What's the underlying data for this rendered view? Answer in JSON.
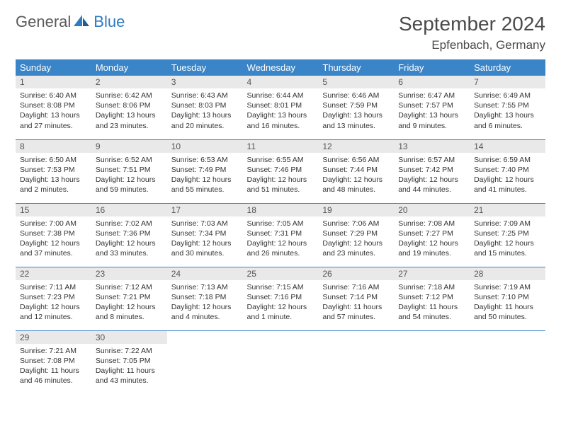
{
  "brand": {
    "general": "General",
    "blue": "Blue"
  },
  "header": {
    "month_title": "September 2024",
    "location": "Epfenbach, Germany"
  },
  "colors": {
    "header_bg": "#3a85c8",
    "header_text": "#ffffff",
    "daynum_bg": "#e9e9e9",
    "row_border": "#3a85c8",
    "brand_blue": "#2f7ac0",
    "brand_gray": "#5a5a5a",
    "page_bg": "#ffffff",
    "body_text": "#333333"
  },
  "day_labels": [
    "Sunday",
    "Monday",
    "Tuesday",
    "Wednesday",
    "Thursday",
    "Friday",
    "Saturday"
  ],
  "days": [
    {
      "n": "1",
      "sr": "Sunrise: 6:40 AM",
      "ss": "Sunset: 8:08 PM",
      "dl": "Daylight: 13 hours and 27 minutes."
    },
    {
      "n": "2",
      "sr": "Sunrise: 6:42 AM",
      "ss": "Sunset: 8:06 PM",
      "dl": "Daylight: 13 hours and 23 minutes."
    },
    {
      "n": "3",
      "sr": "Sunrise: 6:43 AM",
      "ss": "Sunset: 8:03 PM",
      "dl": "Daylight: 13 hours and 20 minutes."
    },
    {
      "n": "4",
      "sr": "Sunrise: 6:44 AM",
      "ss": "Sunset: 8:01 PM",
      "dl": "Daylight: 13 hours and 16 minutes."
    },
    {
      "n": "5",
      "sr": "Sunrise: 6:46 AM",
      "ss": "Sunset: 7:59 PM",
      "dl": "Daylight: 13 hours and 13 minutes."
    },
    {
      "n": "6",
      "sr": "Sunrise: 6:47 AM",
      "ss": "Sunset: 7:57 PM",
      "dl": "Daylight: 13 hours and 9 minutes."
    },
    {
      "n": "7",
      "sr": "Sunrise: 6:49 AM",
      "ss": "Sunset: 7:55 PM",
      "dl": "Daylight: 13 hours and 6 minutes."
    },
    {
      "n": "8",
      "sr": "Sunrise: 6:50 AM",
      "ss": "Sunset: 7:53 PM",
      "dl": "Daylight: 13 hours and 2 minutes."
    },
    {
      "n": "9",
      "sr": "Sunrise: 6:52 AM",
      "ss": "Sunset: 7:51 PM",
      "dl": "Daylight: 12 hours and 59 minutes."
    },
    {
      "n": "10",
      "sr": "Sunrise: 6:53 AM",
      "ss": "Sunset: 7:49 PM",
      "dl": "Daylight: 12 hours and 55 minutes."
    },
    {
      "n": "11",
      "sr": "Sunrise: 6:55 AM",
      "ss": "Sunset: 7:46 PM",
      "dl": "Daylight: 12 hours and 51 minutes."
    },
    {
      "n": "12",
      "sr": "Sunrise: 6:56 AM",
      "ss": "Sunset: 7:44 PM",
      "dl": "Daylight: 12 hours and 48 minutes."
    },
    {
      "n": "13",
      "sr": "Sunrise: 6:57 AM",
      "ss": "Sunset: 7:42 PM",
      "dl": "Daylight: 12 hours and 44 minutes."
    },
    {
      "n": "14",
      "sr": "Sunrise: 6:59 AM",
      "ss": "Sunset: 7:40 PM",
      "dl": "Daylight: 12 hours and 41 minutes."
    },
    {
      "n": "15",
      "sr": "Sunrise: 7:00 AM",
      "ss": "Sunset: 7:38 PM",
      "dl": "Daylight: 12 hours and 37 minutes."
    },
    {
      "n": "16",
      "sr": "Sunrise: 7:02 AM",
      "ss": "Sunset: 7:36 PM",
      "dl": "Daylight: 12 hours and 33 minutes."
    },
    {
      "n": "17",
      "sr": "Sunrise: 7:03 AM",
      "ss": "Sunset: 7:34 PM",
      "dl": "Daylight: 12 hours and 30 minutes."
    },
    {
      "n": "18",
      "sr": "Sunrise: 7:05 AM",
      "ss": "Sunset: 7:31 PM",
      "dl": "Daylight: 12 hours and 26 minutes."
    },
    {
      "n": "19",
      "sr": "Sunrise: 7:06 AM",
      "ss": "Sunset: 7:29 PM",
      "dl": "Daylight: 12 hours and 23 minutes."
    },
    {
      "n": "20",
      "sr": "Sunrise: 7:08 AM",
      "ss": "Sunset: 7:27 PM",
      "dl": "Daylight: 12 hours and 19 minutes."
    },
    {
      "n": "21",
      "sr": "Sunrise: 7:09 AM",
      "ss": "Sunset: 7:25 PM",
      "dl": "Daylight: 12 hours and 15 minutes."
    },
    {
      "n": "22",
      "sr": "Sunrise: 7:11 AM",
      "ss": "Sunset: 7:23 PM",
      "dl": "Daylight: 12 hours and 12 minutes."
    },
    {
      "n": "23",
      "sr": "Sunrise: 7:12 AM",
      "ss": "Sunset: 7:21 PM",
      "dl": "Daylight: 12 hours and 8 minutes."
    },
    {
      "n": "24",
      "sr": "Sunrise: 7:13 AM",
      "ss": "Sunset: 7:18 PM",
      "dl": "Daylight: 12 hours and 4 minutes."
    },
    {
      "n": "25",
      "sr": "Sunrise: 7:15 AM",
      "ss": "Sunset: 7:16 PM",
      "dl": "Daylight: 12 hours and 1 minute."
    },
    {
      "n": "26",
      "sr": "Sunrise: 7:16 AM",
      "ss": "Sunset: 7:14 PM",
      "dl": "Daylight: 11 hours and 57 minutes."
    },
    {
      "n": "27",
      "sr": "Sunrise: 7:18 AM",
      "ss": "Sunset: 7:12 PM",
      "dl": "Daylight: 11 hours and 54 minutes."
    },
    {
      "n": "28",
      "sr": "Sunrise: 7:19 AM",
      "ss": "Sunset: 7:10 PM",
      "dl": "Daylight: 11 hours and 50 minutes."
    },
    {
      "n": "29",
      "sr": "Sunrise: 7:21 AM",
      "ss": "Sunset: 7:08 PM",
      "dl": "Daylight: 11 hours and 46 minutes."
    },
    {
      "n": "30",
      "sr": "Sunrise: 7:22 AM",
      "ss": "Sunset: 7:05 PM",
      "dl": "Daylight: 11 hours and 43 minutes."
    }
  ],
  "layout": {
    "first_weekday_index": 0,
    "rows": 5,
    "cols": 7
  }
}
